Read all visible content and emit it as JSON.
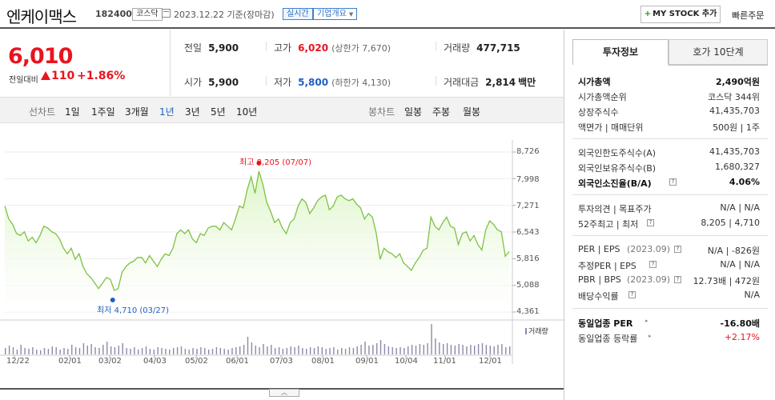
{
  "header": {
    "stock_name": "엔케이맥스",
    "stock_code": "182400",
    "market": "코스닥",
    "date_text": "2023.12.22 기준(장마감)",
    "realtime_label": "실시간",
    "overview_label": "기업개요",
    "my_stock_label": "MY STOCK 추가",
    "quick_order_label": "빠른주문"
  },
  "price": {
    "current": "6,010",
    "compare_label": "전일대비",
    "change": "110",
    "change_pct": "+1.86%"
  },
  "quote": {
    "prev_close_label": "전일",
    "prev_close": "5,900",
    "high_label": "고가",
    "high": "6,020",
    "upper_limit": "(상한가 7,670)",
    "volume_label": "거래량",
    "volume": "477,715",
    "open_label": "시가",
    "open": "5,900",
    "low_label": "저가",
    "low": "5,800",
    "lower_limit": "(하한가 4,130)",
    "value_label": "거래대금",
    "value": "2,814",
    "value_unit": "백만"
  },
  "tabs": {
    "line_label": "선차트",
    "line_periods": [
      "1일",
      "1주일",
      "3개월",
      "1년",
      "3년",
      "5년",
      "10년"
    ],
    "active_period": "1년",
    "candle_label": "봉차트",
    "candle_periods": [
      "일봉",
      "주봉",
      "월봉"
    ]
  },
  "chart_data": {
    "type": "area",
    "title": "",
    "y_ticks": [
      "8,726",
      "7,998",
      "7,271",
      "6,543",
      "5,816",
      "5,088",
      "4,361"
    ],
    "x_ticks": [
      "12/22",
      "02/01",
      "03/02",
      "04/03",
      "05/02",
      "06/01",
      "07/03",
      "08/01",
      "09/01",
      "10/04",
      "11/01",
      "12/01"
    ],
    "ylim": [
      4361,
      8726
    ],
    "max_label": "최고 8,205 (07/07)",
    "min_label": "최저 4,710 (03/27)",
    "volume_label": "거래량",
    "color": "#7dc242",
    "fill": "#dcf5c6",
    "series": [
      {
        "values": [
          7250,
          6900,
          6750,
          6500,
          6450,
          6550,
          6300,
          6400,
          6250,
          6450,
          6700,
          6650,
          6550,
          6500,
          6350,
          6100,
          5950,
          6100,
          5800,
          5950,
          5600,
          5400,
          5300,
          5150,
          5000,
          5150,
          5300,
          5250,
          4950,
          5000,
          5450,
          5600,
          5700,
          5750,
          5850,
          5850,
          5700,
          5900,
          5750,
          5600,
          5800,
          5950,
          5900,
          6100,
          6500,
          6600,
          6500,
          6600,
          6350,
          6250,
          6500,
          6450,
          6650,
          6700,
          6700,
          6600,
          6800,
          6700,
          6600,
          6900,
          7250,
          7200,
          7700,
          8050,
          7600,
          8205,
          7850,
          7350,
          7100,
          6800,
          6900,
          6650,
          6500,
          6800,
          6900,
          7250,
          7450,
          7350,
          7050,
          7200,
          7400,
          7500,
          7550,
          7150,
          7250,
          7500,
          7550,
          7450,
          7400,
          7450,
          7300,
          7200,
          6900,
          7050,
          6950,
          6500,
          5800,
          6100,
          6000,
          5950,
          5850,
          5950,
          5700,
          5600,
          5500,
          5700,
          5850,
          6050,
          6100,
          6950,
          6700,
          6600,
          6800,
          6950,
          6700,
          6650,
          6200,
          6500,
          6550,
          6300,
          6450,
          6200,
          6050,
          6600,
          6850,
          6750,
          6600,
          6550,
          5880,
          6010
        ]
      }
    ],
    "volume": [
      8,
      11,
      9,
      6,
      12,
      8,
      7,
      9,
      6,
      5,
      8,
      7,
      10,
      9,
      6,
      8,
      7,
      12,
      9,
      8,
      14,
      11,
      13,
      9,
      8,
      12,
      16,
      10,
      9,
      11,
      14,
      8,
      7,
      9,
      6,
      8,
      10,
      7,
      6,
      9,
      8,
      7,
      6,
      8,
      9,
      10,
      7,
      6,
      8,
      7,
      9,
      8,
      6,
      7,
      9,
      8,
      7,
      6,
      8,
      9,
      10,
      12,
      22,
      15,
      11,
      9,
      13,
      10,
      12,
      8,
      9,
      7,
      8,
      10,
      9,
      11,
      8,
      7,
      9,
      8,
      10,
      9,
      7,
      8,
      9,
      6,
      8,
      7,
      9,
      8,
      10,
      12,
      16,
      11,
      12,
      14,
      18,
      13,
      10,
      9,
      8,
      9,
      8,
      10,
      12,
      11,
      13,
      12,
      14,
      38,
      20,
      15,
      13,
      14,
      12,
      11,
      13,
      12,
      10,
      12,
      11,
      13,
      14,
      12,
      11,
      10,
      12,
      13,
      9,
      10
    ]
  },
  "side": {
    "tab_active": "투자정보",
    "tab_other": "호가 10단계",
    "rows_a": [
      {
        "label": "시가총액",
        "value": "2,490억원",
        "bold": true
      },
      {
        "label": "시가총액순위",
        "value": "코스닥 344위"
      },
      {
        "label": "상장주식수",
        "value": "41,435,703"
      },
      {
        "label": "액면가 | 매매단위",
        "value": "500원 | 1주"
      }
    ],
    "rows_b": [
      {
        "label": "외국인한도주식수(A)",
        "value": "41,435,703"
      },
      {
        "label": "외국인보유주식수(B)",
        "value": "1,680,327"
      },
      {
        "label": "외국인소진율(B/A)",
        "value": "4.06%",
        "bold": true
      }
    ],
    "rows_c": [
      {
        "label": "투자의견 | 목표주가",
        "value": "N/A | N/A"
      },
      {
        "label": "52주최고 | 최저",
        "value": "8,205 | 4,710"
      }
    ],
    "rows_d": [
      {
        "label": "PER | EPS",
        "sub": "(2023.09)",
        "value": "N/A | -826원"
      },
      {
        "label": "추정PER | EPS",
        "value": "N/A | N/A"
      },
      {
        "label": "PBR | BPS",
        "sub": "(2023.09)",
        "value": "12.73배 | 472원"
      },
      {
        "label": "배당수익률",
        "value": "N/A"
      }
    ],
    "rows_e": [
      {
        "label": "동일업종 PER",
        "value": "-16.80배",
        "bold": true
      },
      {
        "label": "동일업종 등락률",
        "value": "+2.17%",
        "red": true
      }
    ]
  }
}
